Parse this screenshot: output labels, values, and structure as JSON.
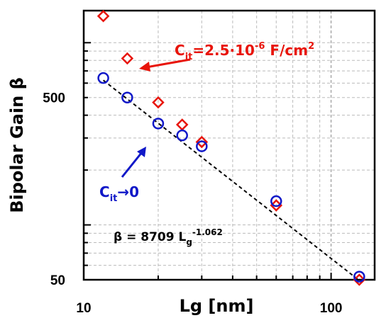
{
  "chart_data": {
    "type": "scatter",
    "xlabel": "Lg [nm]",
    "ylabel": "Bipolar Gain β",
    "x_scale": "log",
    "y_scale": "log",
    "xlim": [
      10,
      150
    ],
    "ylim": [
      50,
      1500
    ],
    "x_tick_labels": [
      "10",
      "100"
    ],
    "y_tick_labels": [
      "50",
      "500"
    ],
    "grid": true,
    "series": [
      {
        "name": "Cit=2.5·10⁻⁶ F/cm²",
        "marker": "diamond",
        "color": "#e8140a",
        "x": [
          12,
          15,
          20,
          25,
          30,
          60,
          130
        ],
        "y": [
          1400,
          820,
          470,
          355,
          285,
          128,
          50
        ]
      },
      {
        "name": "Cit→0",
        "marker": "circle",
        "color": "#1018c8",
        "x": [
          12,
          15,
          20,
          25,
          30,
          60,
          130
        ],
        "y": [
          640,
          500,
          360,
          310,
          270,
          135,
          52
        ]
      },
      {
        "name": "β = 8709 Lg^-1.062",
        "type": "fit-line",
        "color": "#000000",
        "coefficient": 8709,
        "exponent": -1.062
      }
    ],
    "annotations": {
      "red": {
        "c": "C",
        "sub": "it",
        "text1": "=2.5·10",
        "sup": "-6",
        "text2": " F/cm",
        "sup2": "2"
      },
      "blue": {
        "c": "C",
        "sub": "it",
        "text": "→0"
      },
      "fit": {
        "beta": "β = 8709 L",
        "sub": "g",
        "sup": "-1.062"
      }
    }
  }
}
